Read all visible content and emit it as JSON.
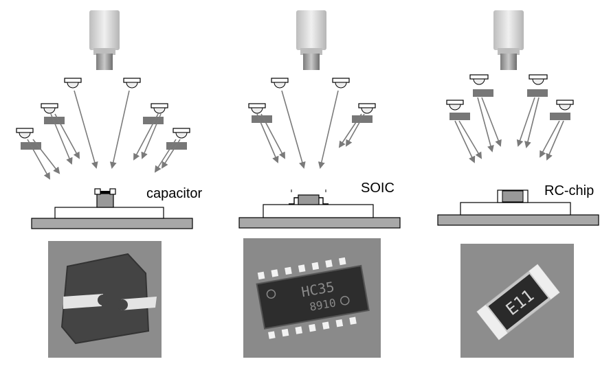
{
  "panels": [
    {
      "id": "capacitor",
      "label": "capacitor"
    },
    {
      "id": "soic",
      "label": "SOIC"
    },
    {
      "id": "rcchip",
      "label": "RC-chip"
    }
  ],
  "chip_markings": {
    "soic": [
      "HC35",
      "8910"
    ],
    "rcchip": "E11"
  },
  "colors": {
    "arrow": "#7a7a7a",
    "board": "#a8a8a8",
    "component": "#999999",
    "light_bar": "#777777",
    "photo_bg": "#8a8a8a"
  }
}
